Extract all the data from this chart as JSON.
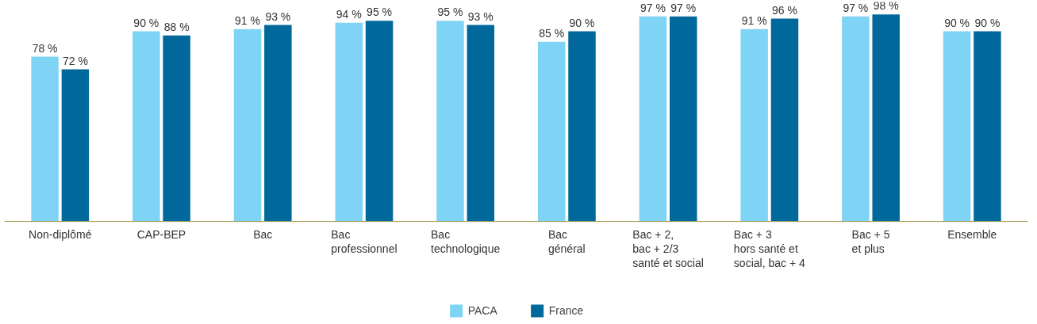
{
  "chart_data": {
    "type": "bar",
    "categories": [
      "Non-diplômé",
      "CAP-BEP",
      "Bac",
      "Bac\nprofessionnel",
      "Bac\ntechnologique",
      "Bac\ngénéral",
      "Bac + 2,\nbac + 2/3\nsanté et social",
      "Bac + 3\nhors santé et\nsocial, bac + 4",
      "Bac + 5\net plus",
      "Ensemble"
    ],
    "series": [
      {
        "name": "PACA",
        "color": "#7fd3f4",
        "values": [
          78,
          90,
          91,
          94,
          95,
          85,
          97,
          91,
          97,
          90
        ],
        "value_labels": [
          "78 %",
          "90 %",
          "91 %",
          "94 %",
          "95 %",
          "85 %",
          "97 %",
          "91 %",
          "97 %",
          "90 %"
        ]
      },
      {
        "name": "France",
        "color": "#00689a",
        "values": [
          72,
          88,
          93,
          95,
          93,
          90,
          97,
          96,
          98,
          90
        ],
        "value_labels": [
          "72 %",
          "88 %",
          "93 %",
          "95 %",
          "93 %",
          "90 %",
          "97 %",
          "96 %",
          "98 %",
          "90 %"
        ]
      }
    ],
    "legend": "bottom"
  }
}
